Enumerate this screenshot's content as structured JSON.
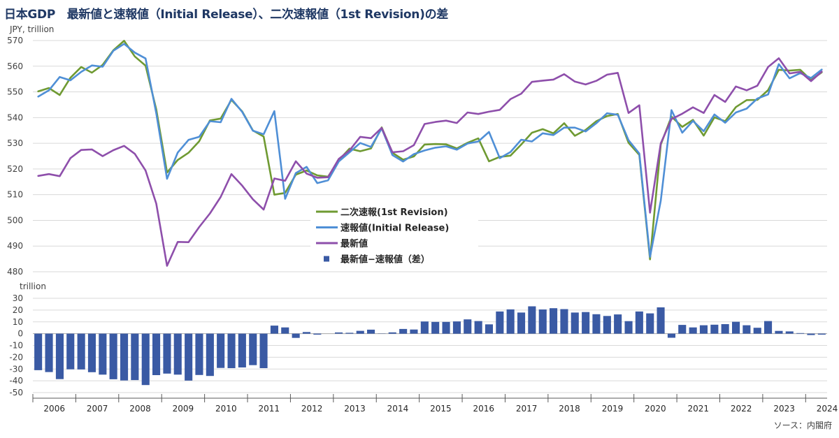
{
  "colors": {
    "first_revision": "#6f9a32",
    "initial_release": "#4f8fd6",
    "latest": "#8e4fab",
    "difference": "#3a5aa4",
    "title": "#1f3864",
    "grid": "#d9d9d9",
    "axis": "#595959"
  },
  "chart_data": [
    {
      "type": "line",
      "title": "日本GDP　最新値と速報値（Initial Release）、二次速報値（1st Revision)の差",
      "ylabel": "JPY, trillion",
      "ylim": [
        480,
        570
      ],
      "yticks": [
        480,
        490,
        500,
        510,
        520,
        530,
        540,
        550,
        560,
        570
      ],
      "grid": true,
      "legend_position": "center",
      "x_start_year": 2006,
      "x_quarters_per_year": 4,
      "series": [
        {
          "name": "二次速報(1st Revision)",
          "color_key": "first_revision",
          "values": [
            550.2,
            551.5,
            548.8,
            555.5,
            559.7,
            557.5,
            560.5,
            566.2,
            569.9,
            563.8,
            560.2,
            543.2,
            518.6,
            523.5,
            526.3,
            530.8,
            538.9,
            539.6,
            546.9,
            542.4,
            535.0,
            532.6,
            510.0,
            510.7,
            517.8,
            519.4,
            517.5,
            517.0,
            523.4,
            527.9,
            526.9,
            528.0,
            536.2,
            526.3,
            523.6,
            524.9,
            529.5,
            529.7,
            529.6,
            528.0,
            530.2,
            531.9,
            523.0,
            524.7,
            525.2,
            529.5,
            534.1,
            535.5,
            533.9,
            537.8,
            532.9,
            535.2,
            538.6,
            540.6,
            541.4,
            530.2,
            525.5,
            484.8,
            529.5,
            540.4,
            536.4,
            539.1,
            533.0,
            540.1,
            538.6,
            544.1,
            546.8,
            546.9,
            550.7,
            558.6,
            558.3,
            558.6,
            554.6,
            557.6
          ]
        },
        {
          "name": "速報値(Initial Release)",
          "color_key": "initial_release",
          "values": [
            548.2,
            550.6,
            555.8,
            554.5,
            557.8,
            560.3,
            559.8,
            566.0,
            568.7,
            565.3,
            563.0,
            541.7,
            516.2,
            526.4,
            531.3,
            532.5,
            538.6,
            538.2,
            547.3,
            542.2,
            534.9,
            533.5,
            542.5,
            508.4,
            518.4,
            520.8,
            514.5,
            515.6,
            522.9,
            526.5,
            530.1,
            528.6,
            535.8,
            525.4,
            522.9,
            525.8,
            527.2,
            528.3,
            528.8,
            527.5,
            529.9,
            530.7,
            534.4,
            524.2,
            526.6,
            531.4,
            530.7,
            533.9,
            533.2,
            536.1,
            536.1,
            534.6,
            537.8,
            541.7,
            541.1,
            531.2,
            526.0,
            485.8,
            507.7,
            542.9,
            534.1,
            538.7,
            534.7,
            541.2,
            538.0,
            542.0,
            543.5,
            547.4,
            549.0,
            560.8,
            555.3,
            557.3,
            555.4,
            558.7
          ]
        },
        {
          "name": "最新値",
          "color_key": "latest",
          "values": [
            517.3,
            518.0,
            517.2,
            524.2,
            527.4,
            527.6,
            525.0,
            527.3,
            529.0,
            525.9,
            519.4,
            506.5,
            482.3,
            491.6,
            491.5,
            497.4,
            502.7,
            509.1,
            518.0,
            513.5,
            508.2,
            504.2,
            516.3,
            515.4,
            523.0,
            518.2,
            516.6,
            516.8,
            523.9,
            527.2,
            532.5,
            532.0,
            536.0,
            526.5,
            526.9,
            529.3,
            537.5,
            538.3,
            538.8,
            537.9,
            542.0,
            541.4,
            542.3,
            543.0,
            547.2,
            549.3,
            553.9,
            554.4,
            554.8,
            556.9,
            554.0,
            552.9,
            554.3,
            556.7,
            557.4,
            541.8,
            544.8,
            503.0,
            530.0,
            539.4,
            541.5,
            544.0,
            541.8,
            548.8,
            546.1,
            552.1,
            550.6,
            552.4,
            559.7,
            563.1,
            557.2,
            557.8,
            554.2,
            557.9
          ]
        }
      ]
    },
    {
      "type": "bar",
      "ylabel": "trillion",
      "ylim": [
        -50,
        30
      ],
      "yticks": [
        -50,
        -40,
        -30,
        -20,
        -10,
        0,
        10,
        20,
        30
      ],
      "grid": true,
      "series": [
        {
          "name": "最新値−速報値（差）",
          "color_key": "difference",
          "values": [
            -31.0,
            -32.6,
            -38.6,
            -30.3,
            -30.4,
            -32.7,
            -34.8,
            -38.7,
            -39.7,
            -39.4,
            -43.6,
            -35.2,
            -33.9,
            -34.8,
            -39.8,
            -35.1,
            -35.9,
            -29.1,
            -29.3,
            -28.7,
            -26.7,
            -29.3,
            6.8,
            5.3,
            -3.6,
            1.4,
            -0.8,
            0.0,
            1.0,
            0.7,
            2.4,
            3.4,
            0.2,
            1.1,
            4.0,
            3.5,
            10.3,
            10.0,
            10.0,
            10.4,
            12.1,
            10.7,
            7.9,
            18.8,
            20.6,
            17.9,
            23.2,
            20.5,
            21.6,
            20.8,
            17.9,
            18.3,
            16.5,
            15.0,
            16.3,
            10.6,
            18.8,
            17.2,
            22.3,
            -3.5,
            7.4,
            5.3,
            7.1,
            7.6,
            8.1,
            10.1,
            7.1,
            5.0,
            10.7,
            2.3,
            1.9,
            0.5,
            -1.2,
            -0.8
          ]
        }
      ]
    }
  ],
  "x_axis": {
    "years": [
      "2006",
      "2007",
      "2008",
      "2009",
      "2010",
      "2011",
      "2012",
      "2013",
      "2014",
      "2015",
      "2016",
      "2017",
      "2018",
      "2019",
      "2020",
      "2021",
      "2022",
      "2023",
      "2024"
    ]
  },
  "source": "ソース：内閣府"
}
